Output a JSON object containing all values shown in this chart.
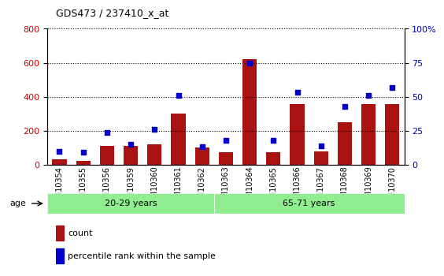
{
  "title": "GDS473 / 237410_x_at",
  "samples": [
    "GSM10354",
    "GSM10355",
    "GSM10356",
    "GSM10359",
    "GSM10360",
    "GSM10361",
    "GSM10362",
    "GSM10363",
    "GSM10364",
    "GSM10365",
    "GSM10366",
    "GSM10367",
    "GSM10368",
    "GSM10369",
    "GSM10370"
  ],
  "counts": [
    30,
    25,
    110,
    110,
    120,
    300,
    100,
    75,
    620,
    75,
    355,
    80,
    248,
    355,
    355
  ],
  "percentiles": [
    10,
    9,
    24,
    15,
    26,
    51,
    13,
    18,
    75,
    18,
    53,
    14,
    43,
    51,
    57
  ],
  "age_groups": [
    {
      "label": "20-29 years",
      "start": 0,
      "end": 7,
      "color": "#90EE90"
    },
    {
      "label": "65-71 years",
      "start": 7,
      "end": 15,
      "color": "#90EE90"
    }
  ],
  "bar_color": "#AA1111",
  "dot_color": "#0000CC",
  "left_ylim": [
    0,
    800
  ],
  "right_ylim": [
    0,
    100
  ],
  "left_yticks": [
    0,
    200,
    400,
    600,
    800
  ],
  "right_yticks": [
    0,
    25,
    50,
    75,
    100
  ],
  "right_yticklabels": [
    "0",
    "25",
    "50",
    "75",
    "100%"
  ],
  "grid_color": "#000000",
  "background_color": "#FFFFFF",
  "age_label": "age",
  "legend_count_label": "count",
  "legend_pct_label": "percentile rank within the sample"
}
